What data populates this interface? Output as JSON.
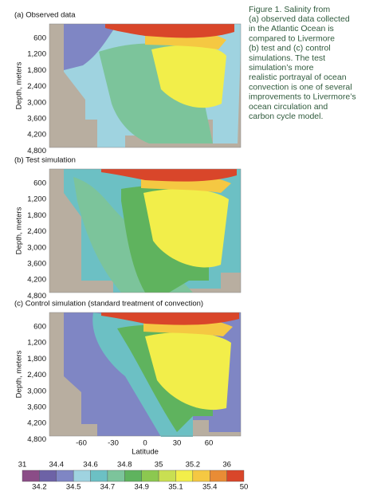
{
  "caption": [
    "Figure 1. Salinity from",
    "(a) observed data collected",
    "in the Atlantic Ocean is",
    "compared to Livermore",
    "(b) test and (c) control",
    "simulations. The test",
    "simulation’s more",
    "realistic portrayal of ocean",
    "convection is one of several",
    "improvements to Livermore’s",
    "ocean circulation and",
    "carbon cycle model."
  ],
  "panels": [
    {
      "label": "(a) Observed data"
    },
    {
      "label": "(b) Test simulation"
    },
    {
      "label": "(c) Control simulation (standard treatment of convection)"
    }
  ],
  "y_axis_label": "Depth, meters",
  "yticks": [
    "600",
    "1,200",
    "1,800",
    "2,400",
    "3,000",
    "3,600",
    "4,200",
    "4,800"
  ],
  "x_axis_label": "Latitude",
  "xticks": [
    "-60",
    "-30",
    "0",
    "30",
    "60"
  ],
  "colorbar": {
    "labels": [
      "31",
      "34.2",
      "34.4",
      "34.5",
      "34.6",
      "34.7",
      "34.8",
      "34.9",
      "35",
      "35.1",
      "35.2",
      "35.4",
      "36",
      "50"
    ],
    "colors": [
      "#8b4d87",
      "#6d62a6",
      "#7f86c4",
      "#9fd3e0",
      "#6cc0c4",
      "#7cc49b",
      "#5fb35e",
      "#8cc850",
      "#c9df52",
      "#f2ee4a",
      "#f5c842",
      "#e98c35",
      "#d9462a"
    ]
  }
}
